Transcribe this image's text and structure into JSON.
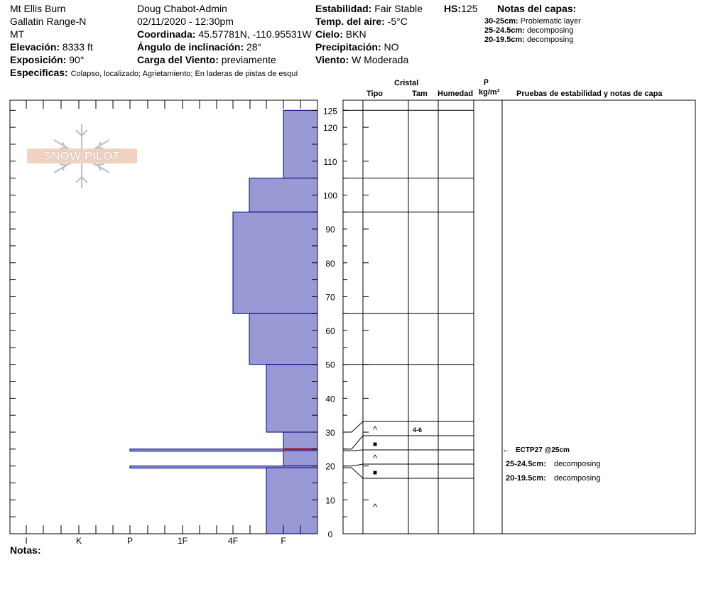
{
  "header": {
    "location": "Mt Ellis Burn",
    "range": "Gallatin Range-N",
    "state": "MT",
    "elevation": {
      "label": "Elevación:",
      "value": "8333 ft"
    },
    "aspect": {
      "label": "Exposición:",
      "value": "90°"
    },
    "observer": "Doug Chabot-Admin",
    "datetime": "02/11/2020 - 12:30pm",
    "coords": {
      "label": "Coordinada:",
      "value": "45.57781N, -110.95531W"
    },
    "slope": {
      "label": "Ángulo de inclinación:",
      "value": "28°"
    },
    "wind_load": {
      "label": "Carga del Viento:",
      "value": "previamente"
    },
    "stability": {
      "label": "Estabilidad:",
      "value": "Fair Stable"
    },
    "hs": {
      "label": "HS:",
      "value": "125"
    },
    "air_temp": {
      "label": "Temp. del aire:",
      "value": "-5°C"
    },
    "sky": {
      "label": "Cielo:",
      "value": "BKN"
    },
    "precip": {
      "label": "Precipitación:",
      "value": "NO"
    },
    "wind": {
      "label": "Viento:",
      "value": "W Moderada"
    },
    "specifics": {
      "label": "Especificas:",
      "value": "Colapso, localizado;  Agrietamiento;  En laderas de pistas de esquí"
    },
    "notes_title": "Notas del capas:",
    "layer_notes": [
      {
        "depth": "30-25cm:",
        "note": "Problematic layer"
      },
      {
        "depth": "25-24.5cm:",
        "note": "decomposing"
      },
      {
        "depth": "20-19.5cm:",
        "note": "decomposing"
      }
    ]
  },
  "table_headers": {
    "cristal": "Cristal",
    "tipo": "Tipo",
    "tam": "Tam",
    "humedad": "Humedad",
    "rho": "ρ",
    "density_unit": "kg/m³",
    "tests": "Pruebas de estabilidad y notas de capa"
  },
  "layer_rows": [
    {
      "symbol": "^",
      "size": "4-6"
    },
    {
      "symbol": "■",
      "size": ""
    },
    {
      "symbol": "^",
      "size": ""
    },
    {
      "symbol": "■",
      "size": ""
    },
    {
      "symbol": "^",
      "size": ""
    }
  ],
  "test_notes": [
    {
      "arrow": "←",
      "text": "ECTP27 @25cm"
    },
    {
      "depth": "25-24.5cm:",
      "text": "decomposing"
    },
    {
      "depth": "20-19.5cm:",
      "text": "decomposing"
    }
  ],
  "logo_text": "SNOW PILOT",
  "notes_label": "Notas:",
  "colors": {
    "fill": "#9999d6",
    "edge": "#000080",
    "red": "#aa0000"
  },
  "chart_data": {
    "type": "bar",
    "orientation": "horizontal-stepped",
    "title": "",
    "ylabel": "",
    "ylim": [
      0,
      125
    ],
    "y_ticks": [
      0,
      10,
      20,
      30,
      40,
      50,
      60,
      70,
      80,
      90,
      100,
      110,
      120,
      125
    ],
    "hardness_scale": [
      "I",
      "K",
      "P",
      "1F",
      "4F",
      "F"
    ],
    "layers": [
      {
        "top": 125,
        "bottom": 105,
        "hardness": "F"
      },
      {
        "top": 105,
        "bottom": 95,
        "hardness": "4F+"
      },
      {
        "top": 95,
        "bottom": 65,
        "hardness": "4F"
      },
      {
        "top": 65,
        "bottom": 50,
        "hardness": "4F+"
      },
      {
        "top": 50,
        "bottom": 30,
        "hardness": "F+"
      },
      {
        "top": 30,
        "bottom": 25,
        "hardness": "F"
      },
      {
        "top": 25,
        "bottom": 24.5,
        "hardness": "P"
      },
      {
        "top": 24.5,
        "bottom": 20,
        "hardness": "F"
      },
      {
        "top": 20,
        "bottom": 19.5,
        "hardness": "P"
      },
      {
        "top": 19.5,
        "bottom": 0,
        "hardness": "F+"
      }
    ],
    "highlight_depth": 25
  }
}
